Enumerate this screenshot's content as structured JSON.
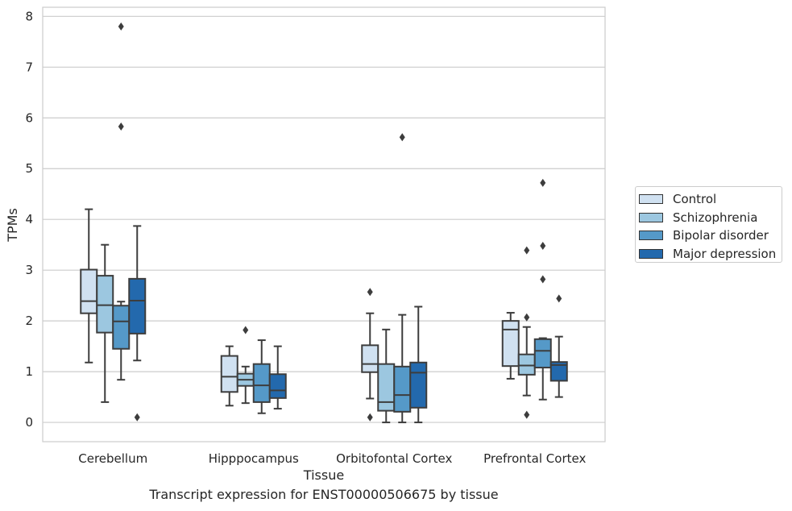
{
  "chart_data": {
    "type": "boxplot",
    "caption": "Transcript expression for ENST00000506675 by tissue",
    "xlabel": "Tissue",
    "ylabel": "TPMs",
    "ylim": [
      -0.38,
      8.18
    ],
    "yticks": [
      0,
      1,
      2,
      3,
      4,
      5,
      6,
      7,
      8
    ],
    "grid": "horizontal",
    "legend_position": "right",
    "categories": [
      "Cerebellum",
      "Hipppocampus",
      "Orbitofontal Cortex",
      "Prefrontal Cortex"
    ],
    "series": [
      {
        "name": "Control",
        "color": "#d0e1f1",
        "boxes": [
          {
            "whislo": 1.18,
            "q1": 2.15,
            "med": 2.39,
            "q3": 3.01,
            "whishi": 4.2,
            "fliers": []
          },
          {
            "whislo": 0.33,
            "q1": 0.6,
            "med": 0.9,
            "q3": 1.31,
            "whishi": 1.5,
            "fliers": []
          },
          {
            "whislo": 0.47,
            "q1": 0.99,
            "med": 1.15,
            "q3": 1.52,
            "whishi": 2.15,
            "fliers": [
              2.57,
              0.1
            ]
          },
          {
            "whislo": 0.86,
            "q1": 1.11,
            "med": 1.83,
            "q3": 2.0,
            "whishi": 2.16,
            "fliers": []
          }
        ]
      },
      {
        "name": "Schizophrenia",
        "color": "#9cc7e0",
        "boxes": [
          {
            "whislo": 0.4,
            "q1": 1.77,
            "med": 2.31,
            "q3": 2.89,
            "whishi": 3.5,
            "fliers": []
          },
          {
            "whislo": 0.38,
            "q1": 0.72,
            "med": 0.84,
            "q3": 0.96,
            "whishi": 1.1,
            "fliers": [
              1.82
            ]
          },
          {
            "whislo": 0.0,
            "q1": 0.23,
            "med": 0.4,
            "q3": 1.15,
            "whishi": 1.83,
            "fliers": []
          },
          {
            "whislo": 0.53,
            "q1": 0.94,
            "med": 1.12,
            "q3": 1.34,
            "whishi": 1.88,
            "fliers": [
              2.07,
              3.39,
              0.15
            ]
          }
        ]
      },
      {
        "name": "Bipolar disorder",
        "color": "#5599c8",
        "boxes": [
          {
            "whislo": 0.84,
            "q1": 1.45,
            "med": 1.99,
            "q3": 2.3,
            "whishi": 2.38,
            "fliers": [
              5.83,
              7.8
            ]
          },
          {
            "whislo": 0.18,
            "q1": 0.4,
            "med": 0.73,
            "q3": 1.15,
            "whishi": 1.62,
            "fliers": []
          },
          {
            "whislo": 0.0,
            "q1": 0.21,
            "med": 0.54,
            "q3": 1.1,
            "whishi": 2.12,
            "fliers": [
              5.62
            ]
          },
          {
            "whislo": 0.45,
            "q1": 1.08,
            "med": 1.41,
            "q3": 1.64,
            "whishi": 1.66,
            "fliers": [
              2.82,
              3.48,
              4.72
            ]
          }
        ]
      },
      {
        "name": "Major depression",
        "color": "#2369ad",
        "boxes": [
          {
            "whislo": 1.22,
            "q1": 1.75,
            "med": 2.4,
            "q3": 2.83,
            "whishi": 3.87,
            "fliers": [
              0.1
            ]
          },
          {
            "whislo": 0.27,
            "q1": 0.48,
            "med": 0.63,
            "q3": 0.95,
            "whishi": 1.5,
            "fliers": []
          },
          {
            "whislo": 0.0,
            "q1": 0.29,
            "med": 0.98,
            "q3": 1.18,
            "whishi": 2.28,
            "fliers": []
          },
          {
            "whislo": 0.5,
            "q1": 0.82,
            "med": 1.13,
            "q3": 1.19,
            "whishi": 1.69,
            "fliers": [
              2.44
            ]
          }
        ]
      }
    ]
  }
}
